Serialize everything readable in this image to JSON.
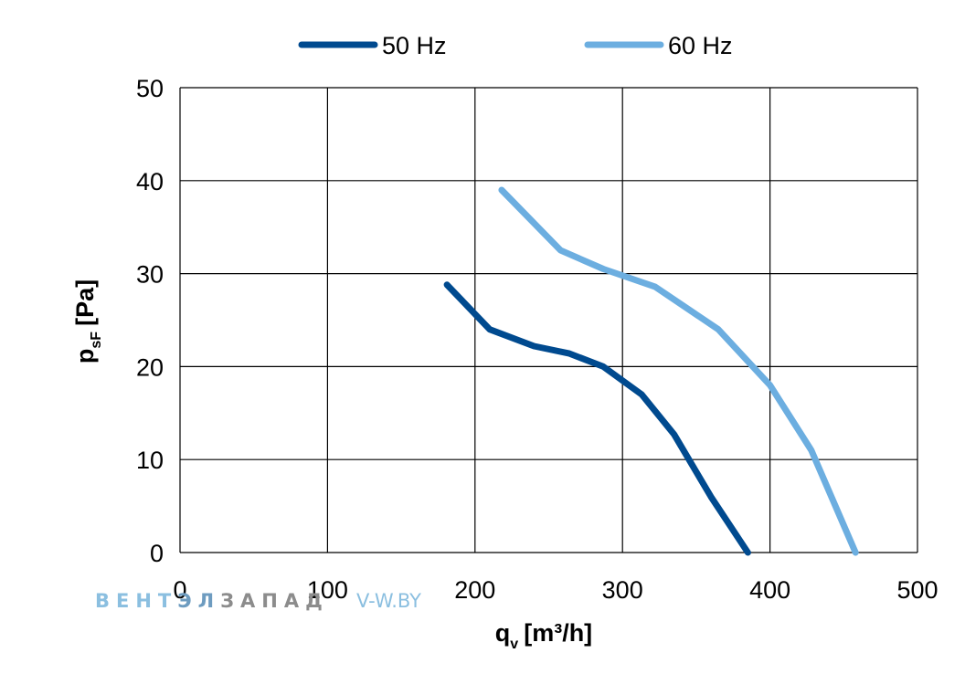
{
  "chart_data": {
    "type": "line",
    "xlabel": {
      "main": "q",
      "sub": "v",
      "unit": "[m³/h]"
    },
    "ylabel": {
      "main": "p",
      "sub": "sF",
      "unit": "[Pa]"
    },
    "xlim": [
      0,
      500
    ],
    "ylim": [
      0,
      50
    ],
    "xticks": [
      0,
      100,
      200,
      300,
      400,
      500
    ],
    "yticks": [
      0,
      10,
      20,
      30,
      40,
      50
    ],
    "grid": true,
    "legend_position": "top",
    "series": [
      {
        "name": "50 Hz",
        "color": "#004A8F",
        "points": [
          [
            181,
            28.8
          ],
          [
            210,
            24.0
          ],
          [
            240,
            22.2
          ],
          [
            264,
            21.4
          ],
          [
            287,
            20.0
          ],
          [
            313,
            17.0
          ],
          [
            335,
            12.7
          ],
          [
            360,
            6.0
          ],
          [
            385,
            0
          ]
        ]
      },
      {
        "name": "60 Hz",
        "color": "#6CAEE0",
        "points": [
          [
            218,
            39.0
          ],
          [
            258,
            32.5
          ],
          [
            287,
            30.5
          ],
          [
            322,
            28.6
          ],
          [
            365,
            24.0
          ],
          [
            400,
            18.0
          ],
          [
            428,
            11.0
          ],
          [
            458,
            0
          ]
        ]
      }
    ]
  },
  "watermark": {
    "brand_light": "ВЕНТ",
    "brand_mid": "ЭЛ",
    "brand_dark": "ЗАПАД",
    "url": "V-W.BY",
    "colors": {
      "light": "#8BBFE0",
      "mid": "#6E9CC0",
      "dark": "#8C8C8C"
    }
  }
}
